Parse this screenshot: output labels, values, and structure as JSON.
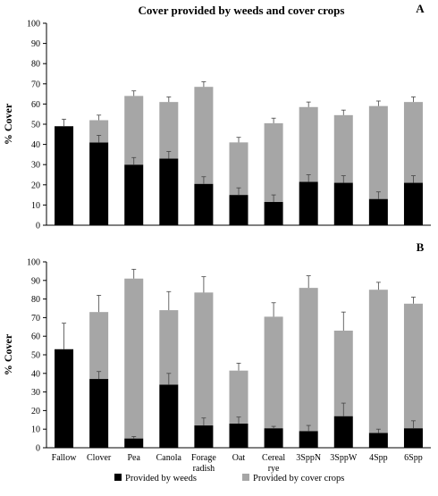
{
  "chart_data": {
    "title": "Cover provided by weeds and cover crops",
    "type": "bar",
    "stacked": true,
    "ylabel": "% Cover",
    "ylim": [
      0,
      100
    ],
    "y_ticks": [
      0,
      10,
      20,
      30,
      40,
      50,
      60,
      70,
      80,
      90,
      100
    ],
    "categories": [
      "Fallow",
      "Clover",
      "Pea",
      "Canola",
      "Forage radish",
      "Oat",
      "Cereal rye",
      "3SppN",
      "3SppW",
      "4Spp",
      "6Spp"
    ],
    "category_lines": [
      [
        "Fallow"
      ],
      [
        "Clover"
      ],
      [
        "Pea"
      ],
      [
        "Canola"
      ],
      [
        "Forage",
        "radish"
      ],
      [
        "Oat"
      ],
      [
        "Cereal",
        "rye"
      ],
      [
        "3SppN"
      ],
      [
        "3SppW"
      ],
      [
        "4Spp"
      ],
      [
        "6Spp"
      ]
    ],
    "legend": {
      "placement": "bottom",
      "items": [
        {
          "label": "Provided by weeds",
          "color": "#000000"
        },
        {
          "label": "Provided by cover crops",
          "color": "#a6a6a6"
        }
      ]
    },
    "panels": [
      {
        "label": "A",
        "series": [
          {
            "name": "Provided by weeds",
            "color": "#000000",
            "values": [
              49,
              41,
              30,
              33,
              20.5,
              15,
              11.5,
              21.5,
              21,
              13,
              21
            ]
          },
          {
            "name": "Provided by cover crops",
            "color": "#a6a6a6",
            "values": [
              0,
              11,
              34,
              28,
              48,
              26,
              39,
              37,
              33.5,
              46,
              40
            ]
          }
        ],
        "weed_error": [
          3.5,
          3.5,
          3.5,
          3.5,
          3.5,
          3.5,
          3.5,
          3.5,
          3.5,
          3.5,
          3.5
        ],
        "total_error": [
          3.5,
          2.5,
          2.5,
          2.5,
          2.5,
          2.5,
          2.5,
          2.5,
          2.5,
          2.5,
          2.5
        ]
      },
      {
        "label": "B",
        "series": [
          {
            "name": "Provided by weeds",
            "color": "#000000",
            "values": [
              53,
              37,
              5,
              34,
              12,
              13,
              10.5,
              9,
              17,
              8,
              10.5
            ]
          },
          {
            "name": "Provided by cover crops",
            "color": "#a6a6a6",
            "values": [
              0,
              36,
              86,
              40,
              71.5,
              28.5,
              60,
              77,
              46,
              77,
              67
            ]
          }
        ],
        "weed_error": [
          14,
          4,
          1,
          6,
          4,
          3.5,
          1,
          3,
          7,
          2,
          4
        ],
        "total_error": [
          14,
          9,
          5,
          10,
          8.5,
          4,
          7.5,
          6.5,
          10,
          4,
          3.5
        ]
      }
    ]
  }
}
